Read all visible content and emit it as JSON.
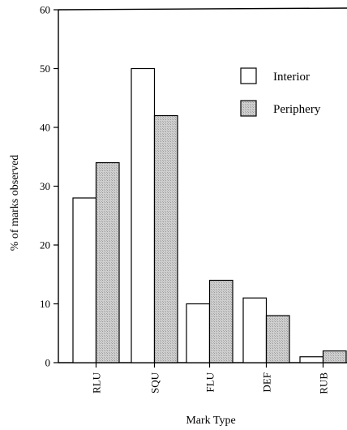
{
  "chart_data": {
    "type": "bar",
    "categories": [
      "RLU",
      "SQU",
      "FLU",
      "DEF",
      "RUB"
    ],
    "series": [
      {
        "name": "Interior",
        "values": [
          28,
          50,
          10,
          11,
          1
        ],
        "color": "#ffffff"
      },
      {
        "name": "Periphery",
        "values": [
          34,
          42,
          14,
          8,
          2
        ],
        "color": "#c8c8c8"
      }
    ],
    "xlabel": "Mark Type",
    "ylabel": "% of marks observed",
    "ylim": [
      0,
      60
    ],
    "yticks": [
      0,
      10,
      20,
      30,
      40,
      50,
      60
    ],
    "grid": false,
    "legend_position": "top-right"
  }
}
